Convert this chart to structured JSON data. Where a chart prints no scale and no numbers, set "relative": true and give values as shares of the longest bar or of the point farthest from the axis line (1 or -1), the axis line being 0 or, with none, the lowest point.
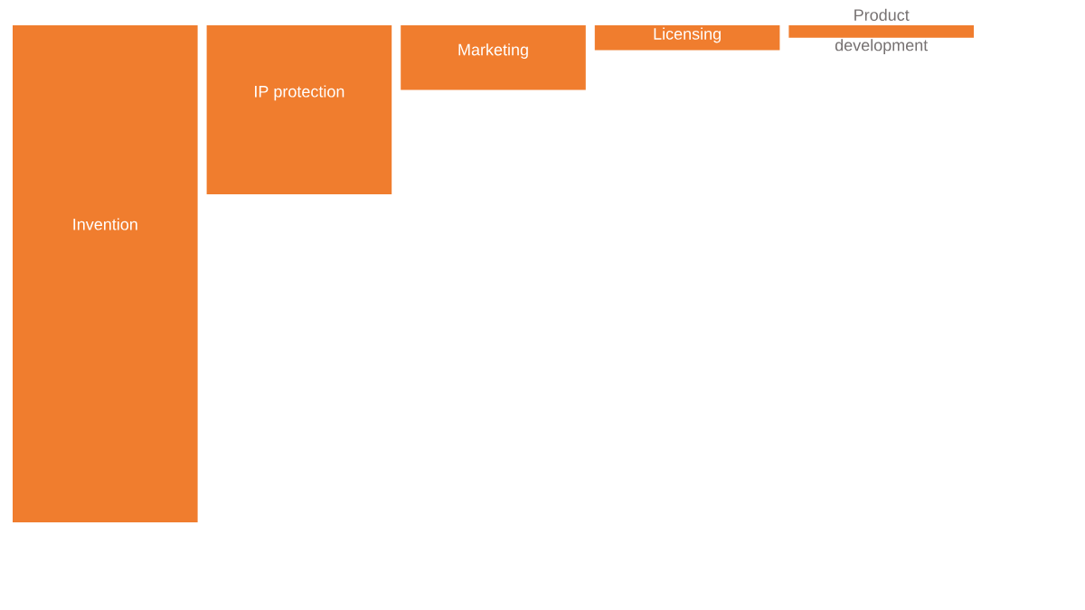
{
  "chart_data": {
    "type": "bar",
    "relative": true,
    "categories": [
      "Invention",
      "IP protection",
      "Marketing",
      "Licensing",
      "Product development"
    ],
    "values": [
      -1,
      -0.34,
      -0.13,
      -0.05,
      -0.025
    ],
    "color": "#f07d2e"
  }
}
